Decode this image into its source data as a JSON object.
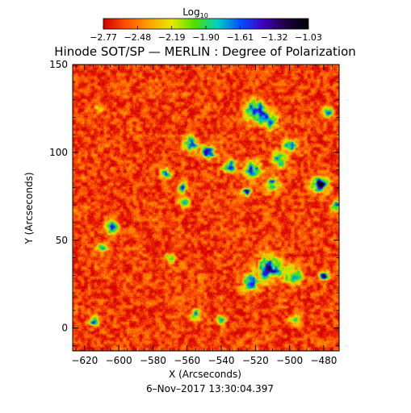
{
  "chart_data": {
    "type": "heatmap",
    "title": "Hinode SOT/SP — MERLIN : Degree of Polarization",
    "xlabel": "X (Arcseconds)",
    "ylabel": "Y (Arcseconds)",
    "timestamp": "6–Nov–2017 13:30:04.397",
    "xlim": [
      -627,
      -471
    ],
    "ylim": [
      -13,
      150
    ],
    "x_ticks": [
      -620,
      -600,
      -580,
      -560,
      -540,
      -520,
      -500,
      -480
    ],
    "y_ticks": [
      0,
      50,
      100,
      150
    ],
    "colorbar": {
      "label_main": "Log",
      "label_sub": "10",
      "range": [
        -2.77,
        -1.03
      ],
      "ticks": [
        -2.77,
        -2.48,
        -2.19,
        -1.9,
        -1.61,
        -1.32,
        -1.03
      ],
      "tick_labels": [
        "−2.77",
        "−2.48",
        "−2.19",
        "−1.90",
        "−1.61",
        "−1.32",
        "−1.03"
      ],
      "colormap": [
        "#d40000",
        "#ff5000",
        "#ffa000",
        "#e8e800",
        "#50e000",
        "#00d0c0",
        "#0050ff",
        "#4000c0",
        "#200040",
        "#000000"
      ]
    },
    "background_level": -2.62,
    "regions": [
      {
        "x": -520,
        "y": 124,
        "r": 6,
        "peak": -1.08
      },
      {
        "x": -512,
        "y": 118,
        "r": 5,
        "peak": -1.5
      },
      {
        "x": -558,
        "y": 105,
        "r": 4,
        "peak": -1.3
      },
      {
        "x": -548,
        "y": 100,
        "r": 4,
        "peak": -1.35
      },
      {
        "x": -535,
        "y": 92,
        "r": 4,
        "peak": -1.35
      },
      {
        "x": -522,
        "y": 90,
        "r": 5,
        "peak": -1.45
      },
      {
        "x": -506,
        "y": 96,
        "r": 5,
        "peak": -1.55
      },
      {
        "x": -500,
        "y": 104,
        "r": 4,
        "peak": -1.6
      },
      {
        "x": -482,
        "y": 82,
        "r": 5,
        "peak": -1.2
      },
      {
        "x": -510,
        "y": 82,
        "r": 4,
        "peak": -1.55
      },
      {
        "x": -525,
        "y": 78,
        "r": 3,
        "peak": -1.45
      },
      {
        "x": -512,
        "y": 34,
        "r": 7,
        "peak": -1.25
      },
      {
        "x": -498,
        "y": 30,
        "r": 5,
        "peak": -1.5
      },
      {
        "x": -523,
        "y": 26,
        "r": 5,
        "peak": -1.45
      },
      {
        "x": -604,
        "y": 57,
        "r": 4,
        "peak": -1.6
      },
      {
        "x": -610,
        "y": 46,
        "r": 3,
        "peak": -1.6
      },
      {
        "x": -573,
        "y": 88,
        "r": 3,
        "peak": -1.6
      },
      {
        "x": -562,
        "y": 72,
        "r": 3,
        "peak": -1.65
      },
      {
        "x": -615,
        "y": 4,
        "r": 3,
        "peak": -1.6
      },
      {
        "x": -555,
        "y": 8,
        "r": 3,
        "peak": -1.6
      },
      {
        "x": -563,
        "y": 80,
        "r": 3,
        "peak": -1.6
      },
      {
        "x": -480,
        "y": 30,
        "r": 3,
        "peak": -1.4
      },
      {
        "x": -473,
        "y": 70,
        "r": 3,
        "peak": -1.6
      },
      {
        "x": -478,
        "y": 123,
        "r": 3,
        "peak": -1.6
      },
      {
        "x": -612,
        "y": 125,
        "r": 2,
        "peak": -1.7
      },
      {
        "x": -540,
        "y": 5,
        "r": 3,
        "peak": -1.65
      },
      {
        "x": -497,
        "y": 5,
        "r": 3,
        "peak": -1.6
      },
      {
        "x": -570,
        "y": 40,
        "r": 3,
        "peak": -1.75
      }
    ]
  }
}
